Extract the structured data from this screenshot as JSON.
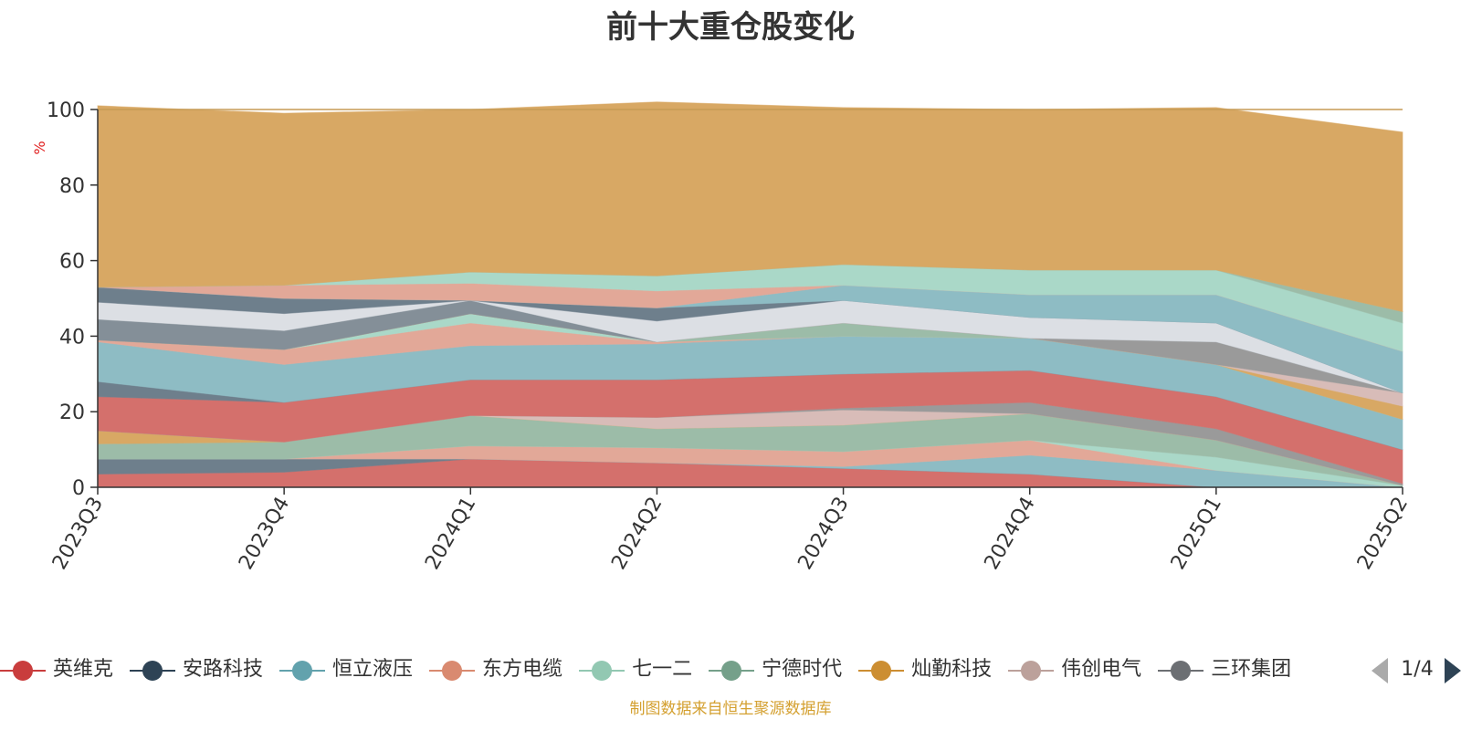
{
  "chart_data": {
    "type": "area",
    "stacked": true,
    "title": "前十大重仓股变化",
    "ylabel": "%",
    "ylim": [
      0,
      100
    ],
    "yticks": [
      0,
      20,
      40,
      60,
      80,
      100
    ],
    "grid": true,
    "x": [
      "2023Q3",
      "2023Q4",
      "2024Q1",
      "2024Q2",
      "2024Q3",
      "2024Q4",
      "2025Q1",
      "2025Q2"
    ],
    "series": [
      {
        "color": "#d4706c",
        "values": [
          3.5,
          4.0,
          7.5,
          6.5,
          5.0,
          3.5,
          0,
          0
        ]
      },
      {
        "color": "#6e7f8c",
        "values": [
          4.0,
          3.5,
          0,
          0,
          0,
          0,
          0,
          0
        ]
      },
      {
        "color": "#8ebcc4",
        "values": [
          0,
          0,
          0,
          0,
          0.5,
          5.0,
          4.5,
          0
        ]
      },
      {
        "color": "#e2a898",
        "values": [
          0,
          0,
          3.5,
          4.0,
          4.0,
          4.0,
          0,
          0
        ]
      },
      {
        "color": "#aad8c8",
        "values": [
          0,
          0,
          0,
          0,
          0,
          0,
          3.5,
          0.5
        ]
      },
      {
        "color": "#9cbca8",
        "values": [
          4.0,
          4.5,
          8.0,
          5.0,
          7.0,
          7.0,
          4.5,
          0
        ]
      },
      {
        "color": "#d8a864",
        "values": [
          3.5,
          0,
          0,
          0,
          0,
          0,
          0,
          0
        ]
      },
      {
        "color": "#d8bcb8",
        "values": [
          0,
          0,
          0,
          3.0,
          4.0,
          0,
          0,
          0
        ]
      },
      {
        "color": "#9a9a9a",
        "values": [
          0,
          0,
          0,
          0,
          0.5,
          3.0,
          3.0,
          0.5
        ]
      },
      {
        "color": "#d4706c",
        "values": [
          9.0,
          10.5,
          9.5,
          10.0,
          9.0,
          8.5,
          8.5,
          9.0
        ]
      },
      {
        "color": "#6e7f8c",
        "values": [
          4.0,
          0,
          0,
          0,
          0,
          0,
          0,
          0
        ]
      },
      {
        "color": "#8ebcc4",
        "values": [
          10.5,
          10.0,
          9.0,
          9.5,
          10.0,
          8.5,
          8.5,
          8.0
        ]
      },
      {
        "color": "#e2a898",
        "values": [
          0.5,
          4.0,
          6.0,
          0.5,
          0,
          0,
          0,
          0
        ]
      },
      {
        "color": "#aad8c8",
        "values": [
          0,
          0,
          2.5,
          0,
          0,
          0,
          0,
          0
        ]
      },
      {
        "color": "#9cbca8",
        "values": [
          0,
          0,
          0,
          0,
          3.5,
          0,
          0,
          0
        ]
      },
      {
        "color": "#d8a864",
        "values": [
          0,
          0,
          0,
          0,
          0,
          0,
          0,
          3.5
        ]
      },
      {
        "color": "#d8bcb8",
        "values": [
          0,
          0,
          0,
          0,
          0,
          0,
          0,
          3.5
        ]
      },
      {
        "color": "#9a9a9a",
        "values": [
          0,
          0,
          0,
          0,
          0,
          0,
          6.0,
          0
        ]
      },
      {
        "color": "#848f98",
        "values": [
          5.5,
          5.0,
          3.5,
          0,
          0,
          0,
          0,
          0
        ]
      },
      {
        "color": "#dcdfe4",
        "values": [
          4.5,
          4.5,
          0,
          5.5,
          6.0,
          5.5,
          5.0,
          0
        ]
      },
      {
        "color": "#6e7f8c",
        "values": [
          4.0,
          4.0,
          0,
          3.5,
          0,
          0,
          0,
          0
        ]
      },
      {
        "color": "#8ebcc4",
        "values": [
          0,
          0,
          0,
          0,
          4.0,
          6.0,
          7.5,
          11.0
        ]
      },
      {
        "color": "#e2a898",
        "values": [
          0,
          3.5,
          4.5,
          4.5,
          0,
          0,
          0,
          0
        ]
      },
      {
        "color": "#aad8c8",
        "values": [
          0,
          0,
          3.0,
          4.0,
          5.5,
          6.5,
          6.5,
          7.5
        ]
      },
      {
        "color": "#9cbca8",
        "values": [
          0,
          0,
          0,
          0,
          0,
          0,
          0,
          3.0
        ]
      },
      {
        "color": "#d8a864",
        "values": [
          48.0,
          45.5,
          43.0,
          46.0,
          41.5,
          42.5,
          43.0,
          47.5
        ]
      }
    ]
  },
  "legend": {
    "items": [
      {
        "label": "英维克",
        "color": "#c93d3d"
      },
      {
        "label": "安路科技",
        "color": "#2e4355"
      },
      {
        "label": "恒立液压",
        "color": "#62a2ad"
      },
      {
        "label": "东方电缆",
        "color": "#d98a70"
      },
      {
        "label": "七一二",
        "color": "#92c8b2"
      },
      {
        "label": "宁德时代",
        "color": "#75a08a"
      },
      {
        "label": "灿勤科技",
        "color": "#cc8e32"
      },
      {
        "label": "伟创电气",
        "color": "#bca19b"
      },
      {
        "label": "三环集团",
        "color": "#6c6f73"
      }
    ],
    "page": "1/4"
  },
  "source_note": "制图数据来自恒生聚源数据库"
}
